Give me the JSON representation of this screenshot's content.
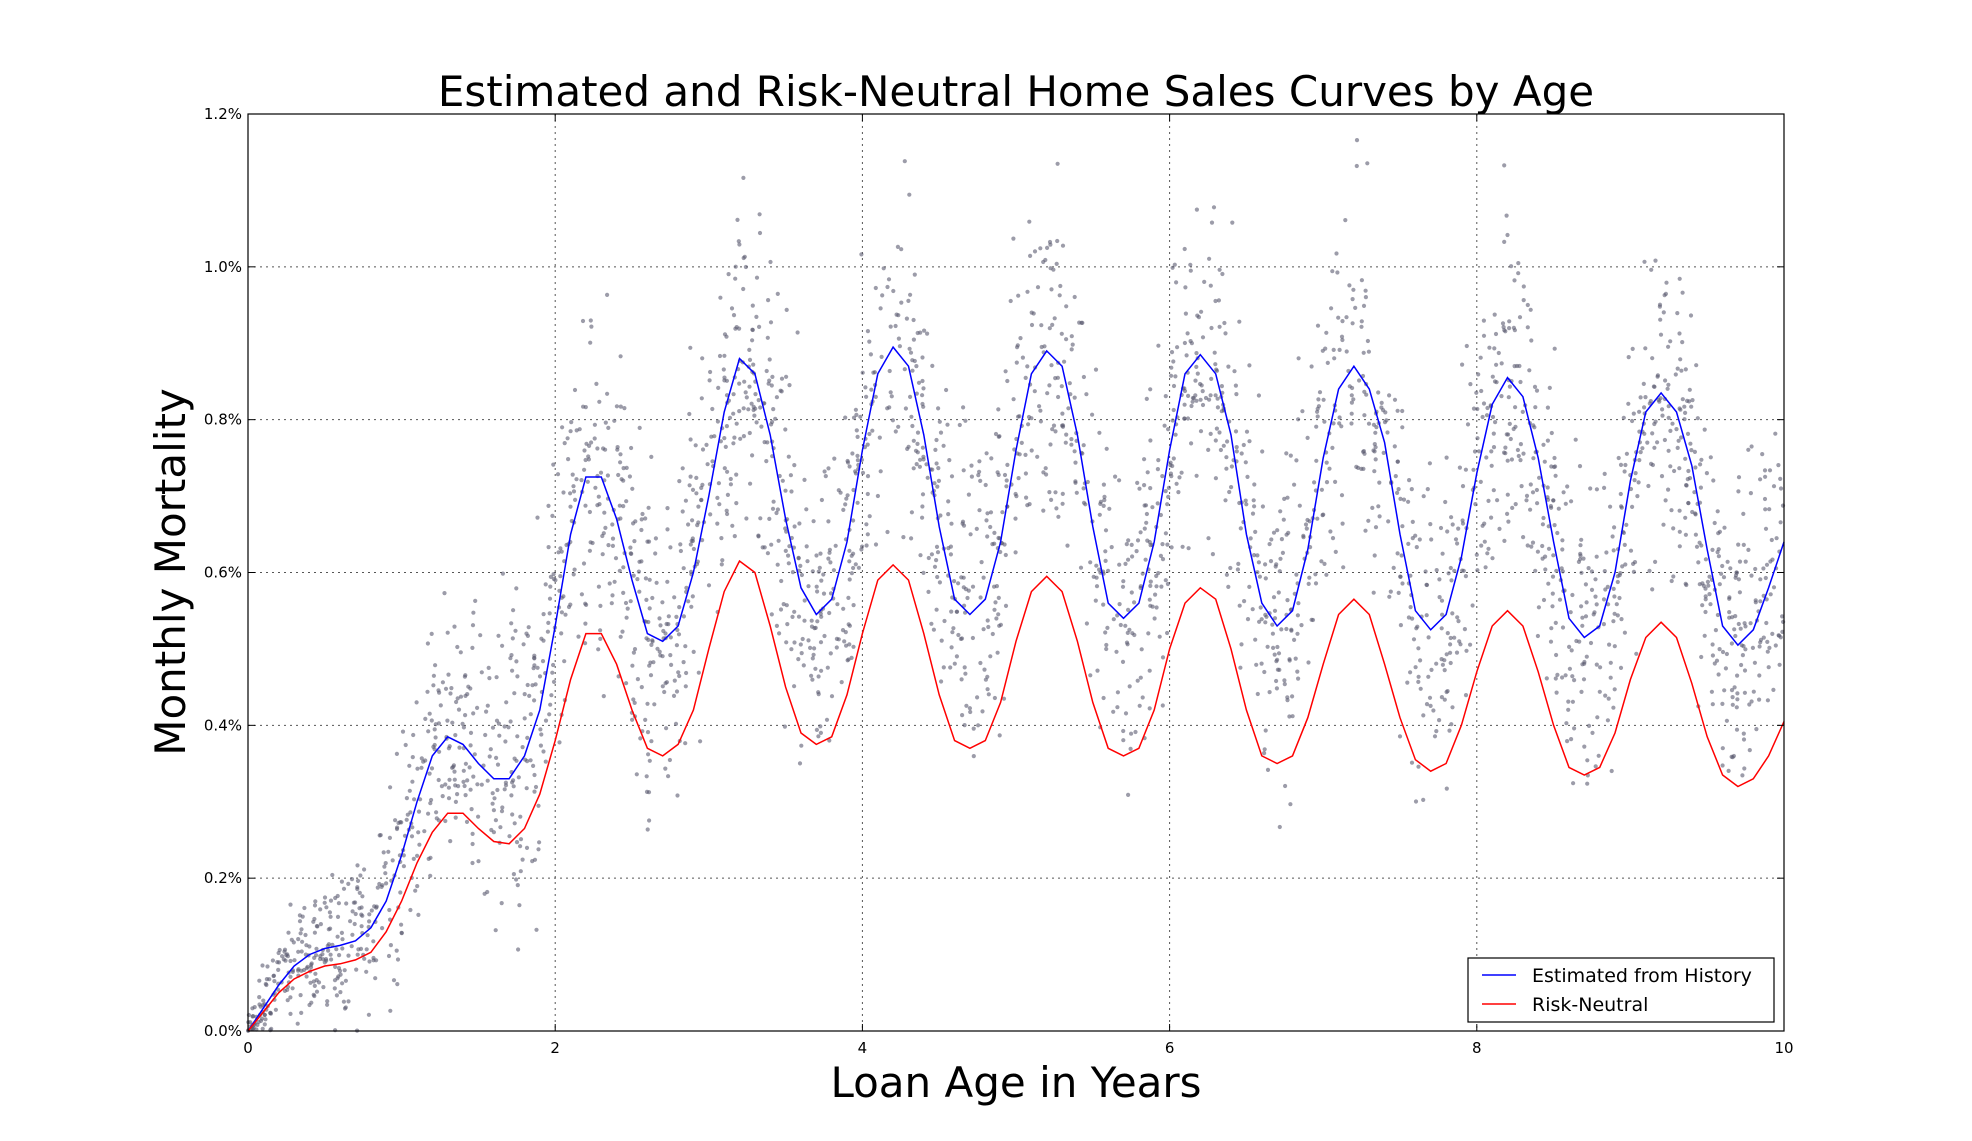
{
  "chart_data": {
    "type": "line",
    "title": "Estimated and Risk-Neutral Home Sales Curves by Age",
    "xlabel": "Loan Age in Years",
    "ylabel": "Monthly Mortality",
    "xlim": [
      0,
      10
    ],
    "ylim": [
      0,
      1.2
    ],
    "xticks": [
      0,
      2,
      4,
      6,
      8,
      10
    ],
    "xtick_labels": [
      "0",
      "2",
      "4",
      "6",
      "8",
      "10"
    ],
    "yticks": [
      0,
      0.2,
      0.4,
      0.6,
      0.8,
      1.0,
      1.2
    ],
    "ytick_labels": [
      "0.0%",
      "0.2%",
      "0.4%",
      "0.6%",
      "0.8%",
      "1.0%",
      "1.2%"
    ],
    "grid": true,
    "legend_position": "bottom-right",
    "scatter_color": "#5a5a70",
    "series": [
      {
        "name": "Estimated from History",
        "color": "#0000ff",
        "x": [
          0,
          0.1,
          0.2,
          0.3,
          0.4,
          0.5,
          0.6,
          0.7,
          0.8,
          0.9,
          1.0,
          1.1,
          1.2,
          1.3,
          1.4,
          1.5,
          1.6,
          1.7,
          1.8,
          1.9,
          2.0,
          2.1,
          2.2,
          2.3,
          2.4,
          2.5,
          2.6,
          2.7,
          2.8,
          2.9,
          3.0,
          3.1,
          3.2,
          3.3,
          3.4,
          3.5,
          3.6,
          3.7,
          3.8,
          3.9,
          4.0,
          4.1,
          4.2,
          4.3,
          4.4,
          4.5,
          4.6,
          4.7,
          4.8,
          4.9,
          5.0,
          5.1,
          5.2,
          5.3,
          5.4,
          5.5,
          5.6,
          5.7,
          5.8,
          5.9,
          6.0,
          6.1,
          6.2,
          6.3,
          6.4,
          6.5,
          6.6,
          6.7,
          6.8,
          6.9,
          7.0,
          7.1,
          7.2,
          7.3,
          7.4,
          7.5,
          7.6,
          7.7,
          7.8,
          7.9,
          8.0,
          8.1,
          8.2,
          8.3,
          8.4,
          8.5,
          8.6,
          8.7,
          8.8,
          8.9,
          9.0,
          9.1,
          9.2,
          9.3,
          9.4,
          9.5,
          9.6,
          9.7,
          9.8,
          9.9,
          10.0
        ],
        "y": [
          0.0,
          0.03,
          0.06,
          0.085,
          0.1,
          0.108,
          0.112,
          0.118,
          0.135,
          0.17,
          0.23,
          0.3,
          0.36,
          0.385,
          0.375,
          0.35,
          0.33,
          0.33,
          0.36,
          0.42,
          0.53,
          0.65,
          0.725,
          0.725,
          0.67,
          0.59,
          0.52,
          0.51,
          0.53,
          0.6,
          0.7,
          0.81,
          0.88,
          0.86,
          0.78,
          0.67,
          0.58,
          0.545,
          0.565,
          0.64,
          0.76,
          0.86,
          0.895,
          0.87,
          0.78,
          0.66,
          0.565,
          0.545,
          0.565,
          0.64,
          0.76,
          0.86,
          0.89,
          0.87,
          0.78,
          0.66,
          0.56,
          0.54,
          0.56,
          0.64,
          0.76,
          0.86,
          0.885,
          0.86,
          0.78,
          0.65,
          0.56,
          0.53,
          0.55,
          0.63,
          0.75,
          0.84,
          0.87,
          0.84,
          0.77,
          0.65,
          0.55,
          0.525,
          0.545,
          0.62,
          0.73,
          0.82,
          0.855,
          0.83,
          0.75,
          0.64,
          0.54,
          0.515,
          0.53,
          0.6,
          0.72,
          0.81,
          0.835,
          0.81,
          0.74,
          0.63,
          0.53,
          0.505,
          0.525,
          0.58,
          0.64
        ]
      },
      {
        "name": "Risk-Neutral",
        "color": "#ff0000",
        "x": [
          0,
          0.1,
          0.2,
          0.3,
          0.4,
          0.5,
          0.6,
          0.7,
          0.8,
          0.9,
          1.0,
          1.1,
          1.2,
          1.3,
          1.4,
          1.5,
          1.6,
          1.7,
          1.8,
          1.9,
          2.0,
          2.1,
          2.2,
          2.3,
          2.4,
          2.5,
          2.6,
          2.7,
          2.8,
          2.9,
          3.0,
          3.1,
          3.2,
          3.3,
          3.4,
          3.5,
          3.6,
          3.7,
          3.8,
          3.9,
          4.0,
          4.1,
          4.2,
          4.3,
          4.4,
          4.5,
          4.6,
          4.7,
          4.8,
          4.9,
          5.0,
          5.1,
          5.2,
          5.3,
          5.4,
          5.5,
          5.6,
          5.7,
          5.8,
          5.9,
          6.0,
          6.1,
          6.2,
          6.3,
          6.4,
          6.5,
          6.6,
          6.7,
          6.8,
          6.9,
          7.0,
          7.1,
          7.2,
          7.3,
          7.4,
          7.5,
          7.6,
          7.7,
          7.8,
          7.9,
          8.0,
          8.1,
          8.2,
          8.3,
          8.4,
          8.5,
          8.6,
          8.7,
          8.8,
          8.9,
          9.0,
          9.1,
          9.2,
          9.3,
          9.4,
          9.5,
          9.6,
          9.7,
          9.8,
          9.9,
          10.0
        ],
        "y": [
          0.0,
          0.025,
          0.05,
          0.068,
          0.078,
          0.085,
          0.088,
          0.093,
          0.103,
          0.13,
          0.17,
          0.22,
          0.26,
          0.285,
          0.285,
          0.265,
          0.248,
          0.245,
          0.265,
          0.31,
          0.38,
          0.46,
          0.52,
          0.52,
          0.48,
          0.42,
          0.37,
          0.36,
          0.375,
          0.42,
          0.5,
          0.575,
          0.615,
          0.6,
          0.53,
          0.45,
          0.39,
          0.375,
          0.385,
          0.44,
          0.52,
          0.59,
          0.61,
          0.59,
          0.52,
          0.44,
          0.38,
          0.37,
          0.38,
          0.43,
          0.51,
          0.575,
          0.595,
          0.575,
          0.51,
          0.43,
          0.37,
          0.36,
          0.37,
          0.42,
          0.5,
          0.56,
          0.58,
          0.565,
          0.5,
          0.42,
          0.36,
          0.35,
          0.36,
          0.41,
          0.48,
          0.545,
          0.565,
          0.545,
          0.48,
          0.41,
          0.355,
          0.34,
          0.35,
          0.4,
          0.47,
          0.53,
          0.55,
          0.53,
          0.47,
          0.4,
          0.345,
          0.335,
          0.345,
          0.39,
          0.46,
          0.515,
          0.535,
          0.515,
          0.455,
          0.385,
          0.335,
          0.32,
          0.33,
          0.36,
          0.405
        ]
      }
    ]
  }
}
